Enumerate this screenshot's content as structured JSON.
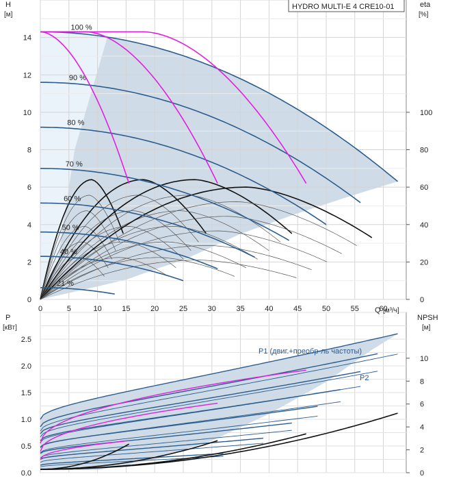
{
  "chart_data": [
    {
      "type": "line",
      "title": "HYDRO MULTI-E 4 CRE10-01",
      "ylabel_left": "H",
      "ylabel_left_unit": "[м]",
      "ylabel_right": "eta",
      "ylabel_right_unit": "[%]",
      "xlabel": "Q",
      "xlabel_unit": "[м³/ч]",
      "xlim": [
        0,
        64
      ],
      "ylim": [
        0,
        16
      ],
      "ylim_right": [
        0,
        160
      ],
      "x_ticks": [
        0,
        5,
        10,
        15,
        20,
        25,
        30,
        35,
        40,
        45,
        50,
        55,
        60
      ],
      "y_ticks": [
        0,
        2,
        4,
        6,
        8,
        10,
        12,
        14
      ],
      "y_right_ticks": [
        0,
        20,
        40,
        60,
        80,
        100
      ],
      "grid": true,
      "speed_curves": [
        {
          "label": "100 %",
          "h0": 14.3,
          "qmax": 62.5,
          "hend": 6.3
        },
        {
          "label": "90 %",
          "h0": 11.6,
          "qmax": 56.3,
          "hend": 5.1
        },
        {
          "label": "80 %",
          "h0": 9.2,
          "qmax": 50.0,
          "hend": 4.0
        },
        {
          "label": "70 %",
          "h0": 7.0,
          "qmax": 43.8,
          "hend": 3.1
        },
        {
          "label": "60 %",
          "h0": 5.15,
          "qmax": 37.5,
          "hend": 2.25
        },
        {
          "label": "50 %",
          "h0": 3.6,
          "qmax": 31.3,
          "hend": 1.6
        },
        {
          "label": "40 %",
          "h0": 2.3,
          "qmax": 25.0,
          "hend": 1.0
        },
        {
          "label": "21 %",
          "h0": 0.63,
          "qmax": 13.1,
          "hend": 0.28
        }
      ],
      "pump_combination_curves": [
        {
          "h0": 14.3,
          "q_flat": 0,
          "q_end": 15.5,
          "h_end": 6.2
        },
        {
          "h0": 14.3,
          "q_flat": 8,
          "q_end": 31.0,
          "h_end": 6.2
        },
        {
          "h0": 14.3,
          "q_flat": 18,
          "q_end": 46.5,
          "h_end": 6.2
        }
      ],
      "efficiency_curve_peaks": [
        {
          "q_start": 0,
          "q_peak": 9,
          "q_end": 14.5,
          "eta_peak": 64
        },
        {
          "q_start": 0,
          "q_peak": 18,
          "q_end": 29,
          "eta_peak": 64
        },
        {
          "q_start": 0,
          "q_peak": 27,
          "q_end": 44,
          "eta_peak": 64
        },
        {
          "q_start": 0,
          "q_peak": 36,
          "q_end": 58,
          "eta_peak": 60
        }
      ]
    },
    {
      "type": "line",
      "ylabel_left": "P",
      "ylabel_left_unit": "[кВт]",
      "ylabel_right": "NPSH",
      "ylabel_right_unit": "[м]",
      "xlim": [
        0,
        64
      ],
      "ylim": [
        0,
        3.0
      ],
      "ylim_right": [
        0,
        14
      ],
      "y_ticks": [
        0.0,
        0.5,
        1.0,
        1.5,
        2.0,
        2.5
      ],
      "y_tick_labels": [
        "0.0",
        "0.5",
        "1.0",
        "1.5",
        "2.0",
        "2.5"
      ],
      "y_right_ticks": [
        0,
        2,
        4,
        6,
        8,
        10
      ],
      "grid": true,
      "annotations": [
        "P1 (двиг.+преобр-ль частоты)",
        "P2"
      ],
      "p1_max": {
        "q": [
          0,
          62.5
        ],
        "p": [
          1.0,
          2.6
        ]
      },
      "p2_max": {
        "q": [
          0,
          62.5
        ],
        "p": [
          0.78,
          2.22
        ]
      },
      "npsh_curves": [
        {
          "q": [
            0,
            15.5
          ],
          "npsh": [
            0.3,
            2.5
          ]
        },
        {
          "q": [
            0,
            31.0
          ],
          "npsh": [
            0.3,
            2.8
          ]
        },
        {
          "q": [
            0,
            46.5
          ],
          "npsh": [
            0.3,
            3.4
          ]
        },
        {
          "q": [
            0,
            62.5
          ],
          "npsh": [
            0.3,
            5.2
          ]
        }
      ]
    }
  ]
}
